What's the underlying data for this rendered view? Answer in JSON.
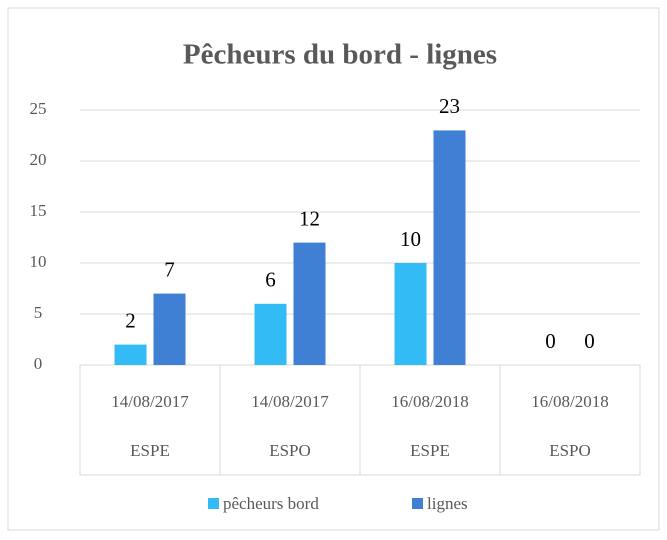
{
  "chart_data": {
    "type": "bar",
    "title": "Pêcheurs du bord - lignes",
    "categories": [
      "14/08/2017",
      "14/08/2017",
      "16/08/2018",
      "16/08/2018"
    ],
    "subcategories": [
      "ESPE",
      "ESPO",
      "ESPE",
      "ESPO"
    ],
    "series": [
      {
        "name": "pêcheurs bord",
        "color": "#33bbf5",
        "values": [
          2,
          6,
          10,
          0
        ]
      },
      {
        "name": "lignes",
        "color": "#3f7fd4",
        "values": [
          7,
          12,
          23,
          0
        ]
      }
    ],
    "ylim": [
      0,
      25
    ],
    "yticks": [
      0,
      5,
      10,
      15,
      20,
      25
    ],
    "grid": true,
    "legend": "bottom",
    "data_labels": true
  }
}
